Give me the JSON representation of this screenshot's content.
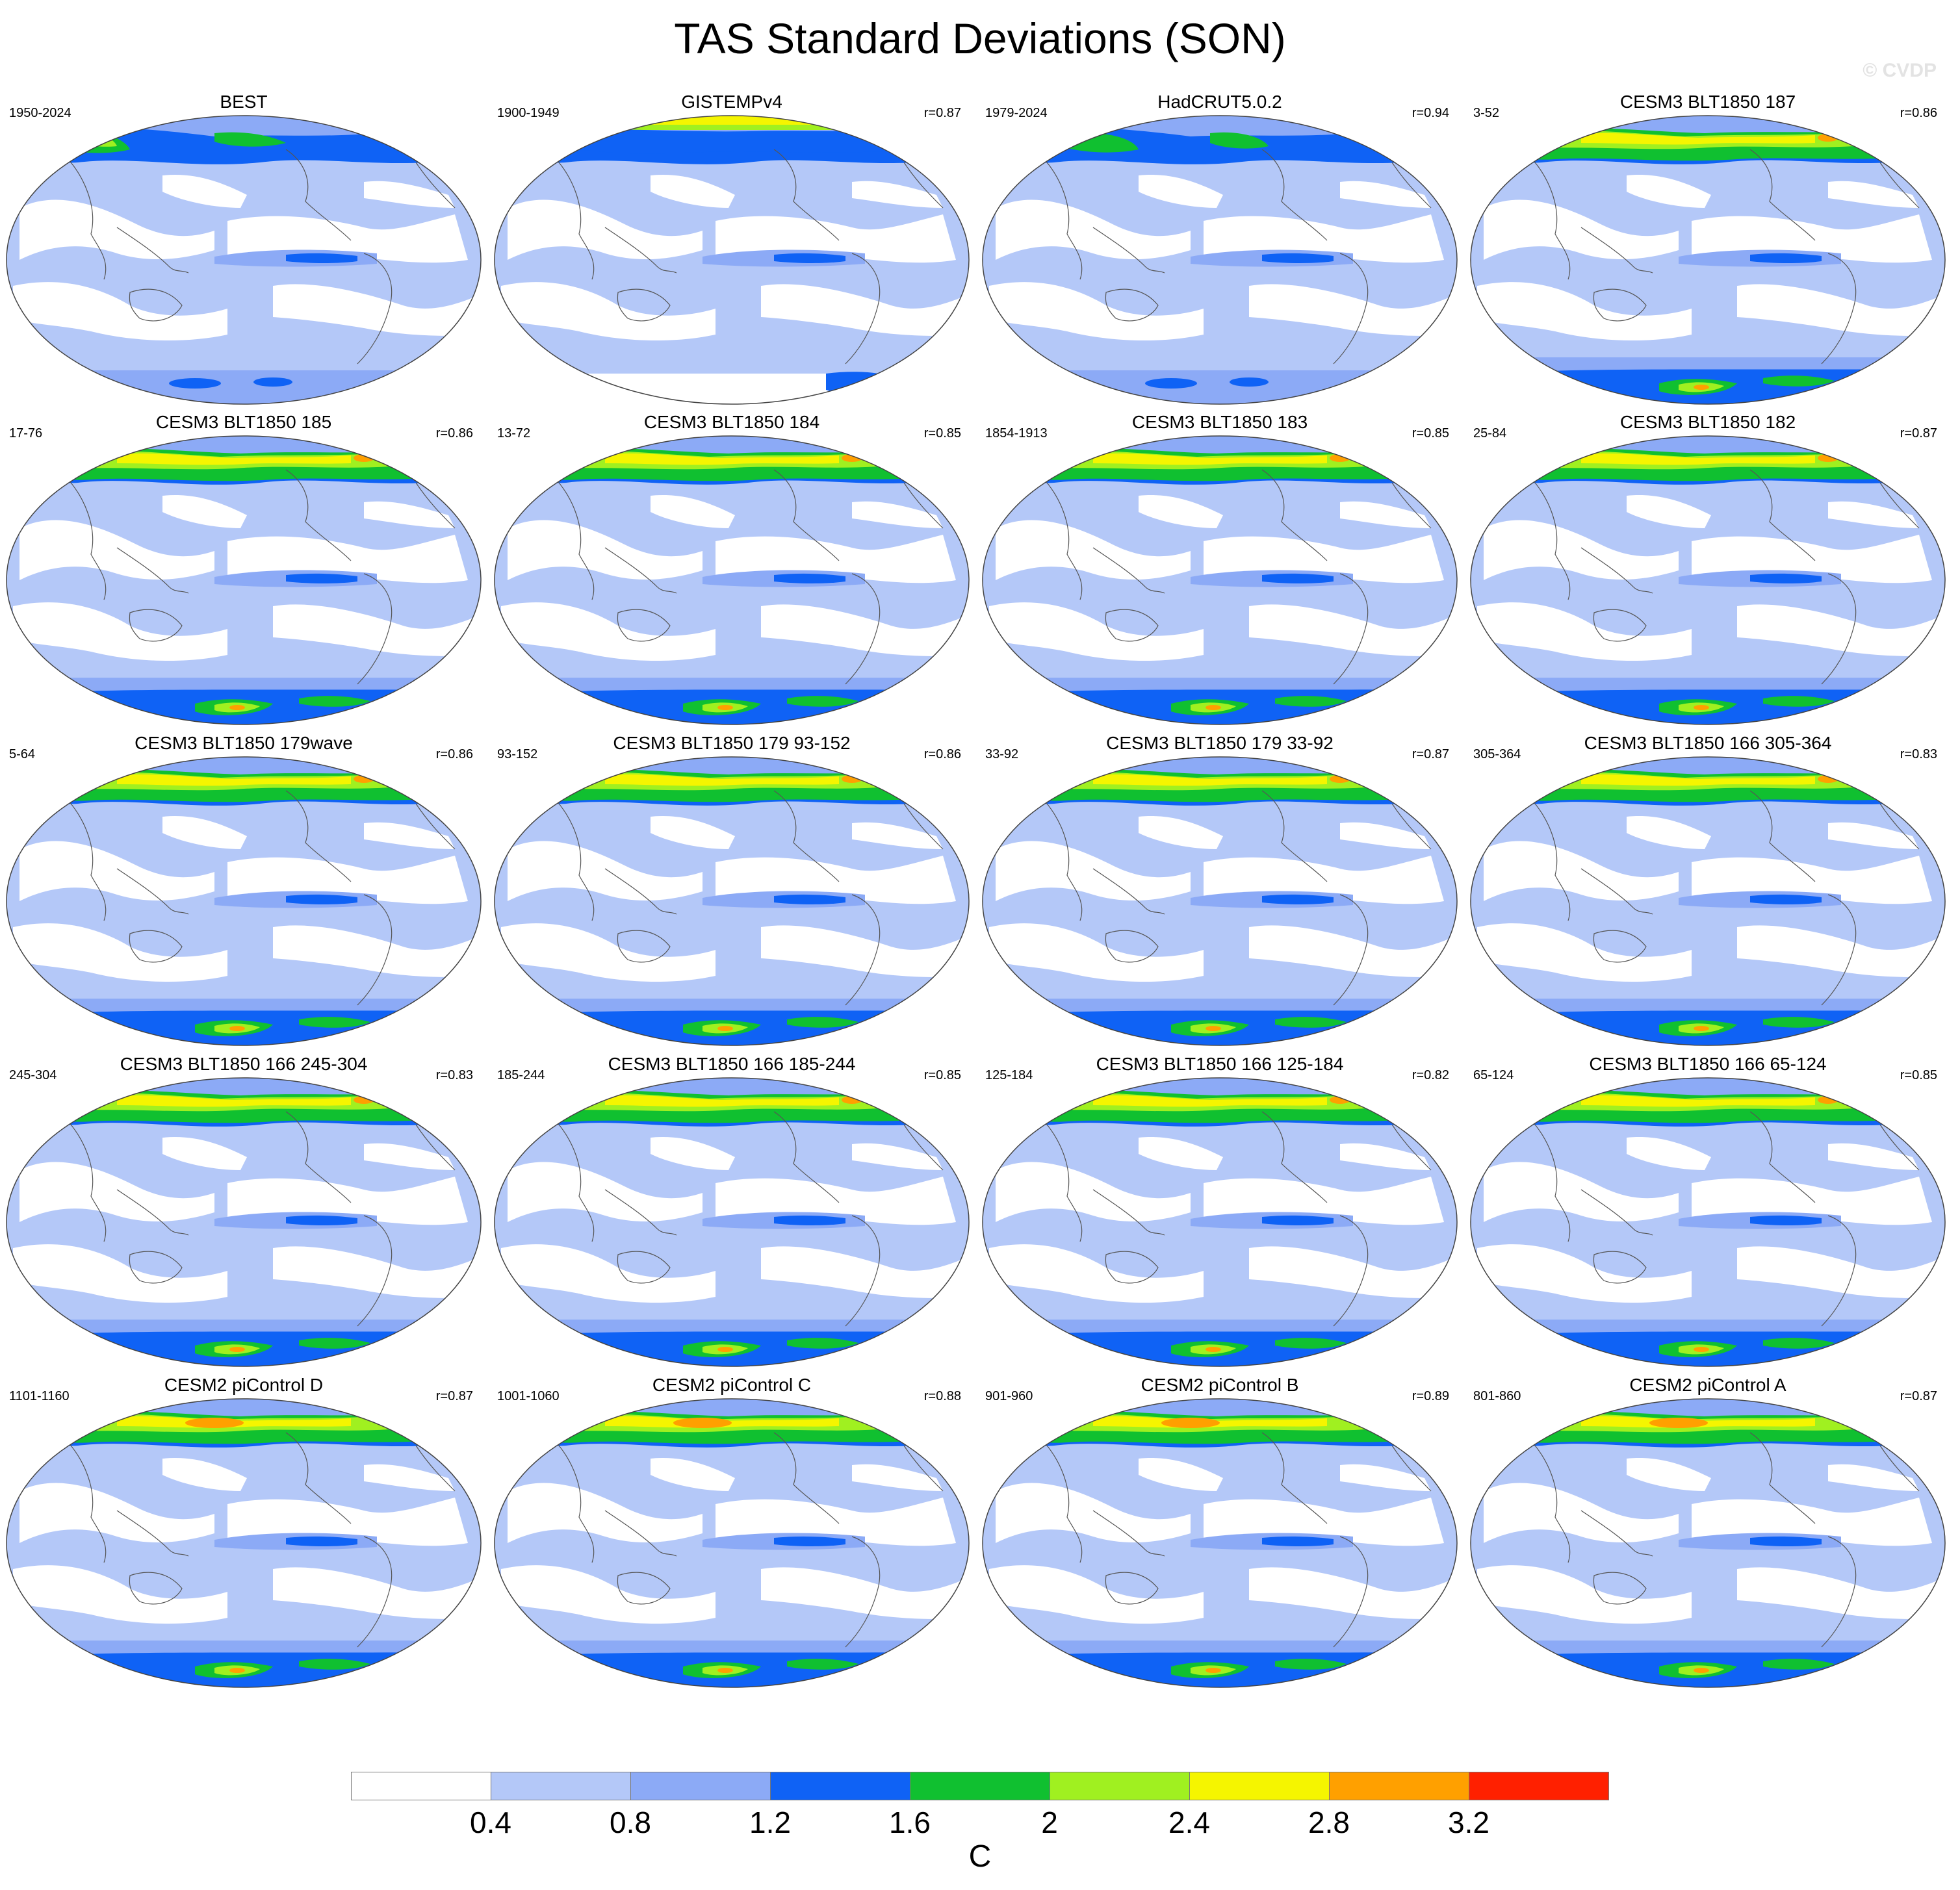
{
  "title": "TAS Standard Deviations (SON)",
  "watermark": "© CVDP",
  "panels": [
    {
      "title": "BEST",
      "years": "1950-2024",
      "corr": "",
      "kind": "obs1"
    },
    {
      "title": "GISTEMPv4",
      "years": "1900-1949",
      "corr": "r=0.87",
      "kind": "obs2"
    },
    {
      "title": "HadCRUT5.0.2",
      "years": "1979-2024",
      "corr": "r=0.94",
      "kind": "obs3"
    },
    {
      "title": "CESM3 BLT1850 187",
      "years": "3-52",
      "corr": "r=0.86",
      "kind": "model"
    },
    {
      "title": "CESM3 BLT1850 185",
      "years": "17-76",
      "corr": "r=0.86",
      "kind": "model"
    },
    {
      "title": "CESM3 BLT1850 184",
      "years": "13-72",
      "corr": "r=0.85",
      "kind": "model"
    },
    {
      "title": "CESM3 BLT1850 183",
      "years": "1854-1913",
      "corr": "r=0.85",
      "kind": "model"
    },
    {
      "title": "CESM3 BLT1850 182",
      "years": "25-84",
      "corr": "r=0.87",
      "kind": "model"
    },
    {
      "title": "CESM3 BLT1850 179wave",
      "years": "5-64",
      "corr": "r=0.86",
      "kind": "model"
    },
    {
      "title": "CESM3 BLT1850 179 93-152",
      "years": "93-152",
      "corr": "r=0.86",
      "kind": "model"
    },
    {
      "title": "CESM3 BLT1850 179 33-92",
      "years": "33-92",
      "corr": "r=0.87",
      "kind": "model"
    },
    {
      "title": "CESM3 BLT1850 166 305-364",
      "years": "305-364",
      "corr": "r=0.83",
      "kind": "model"
    },
    {
      "title": "CESM3 BLT1850 166 245-304",
      "years": "245-304",
      "corr": "r=0.83",
      "kind": "model"
    },
    {
      "title": "CESM3 BLT1850 166 185-244",
      "years": "185-244",
      "corr": "r=0.85",
      "kind": "model"
    },
    {
      "title": "CESM3 BLT1850 166 125-184",
      "years": "125-184",
      "corr": "r=0.82",
      "kind": "model"
    },
    {
      "title": "CESM3 BLT1850 166 65-124",
      "years": "65-124",
      "corr": "r=0.85",
      "kind": "model"
    },
    {
      "title": "CESM2 piControl D",
      "years": "1101-1160",
      "corr": "r=0.87",
      "kind": "pic"
    },
    {
      "title": "CESM2 piControl C",
      "years": "1001-1060",
      "corr": "r=0.88",
      "kind": "pic"
    },
    {
      "title": "CESM2 piControl B",
      "years": "901-960",
      "corr": "r=0.89",
      "kind": "pic"
    },
    {
      "title": "CESM2 piControl A",
      "years": "801-860",
      "corr": "r=0.87",
      "kind": "pic"
    }
  ],
  "colorbar": {
    "unit": "C",
    "tick_labels": [
      "0.4",
      "0.8",
      "1.2",
      "1.6",
      "2",
      "2.4",
      "2.8",
      "3.2"
    ],
    "colors": [
      "#ffffff",
      "#b4c8f8",
      "#8caaf6",
      "#0f62f5",
      "#10c030",
      "#a0f020",
      "#f5f500",
      "#ffa000",
      "#ff2000"
    ]
  }
}
